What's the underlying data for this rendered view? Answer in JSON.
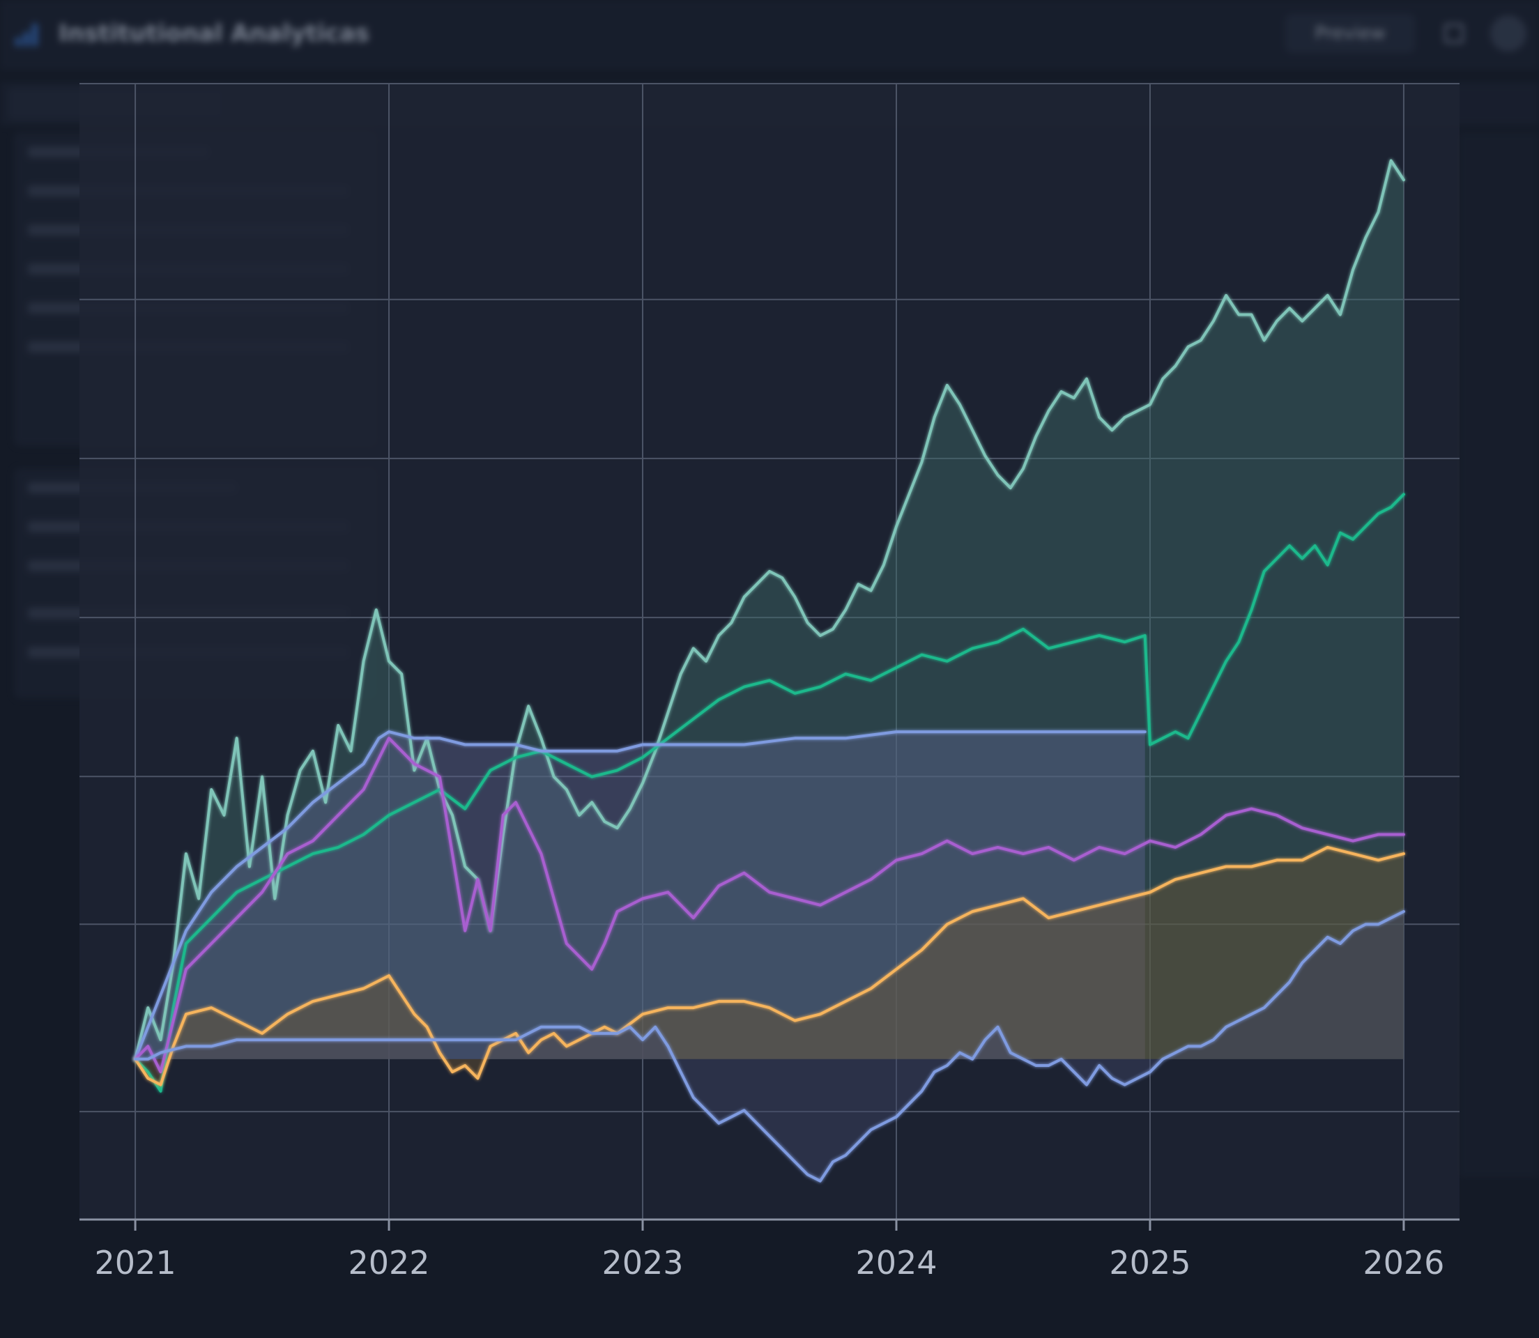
{
  "app": {
    "title": "Institutional Analyticas",
    "preview_label": "Preview"
  },
  "colors": {
    "background": "#1e2433",
    "grid": "#4c5466",
    "axis": "#8a92a3",
    "tick_text": "#b6bdca"
  },
  "chart_data": {
    "type": "line",
    "title": "",
    "xlabel": "",
    "ylabel": "",
    "xlim": [
      2020.78,
      2026.22
    ],
    "ylim": [
      0.05,
      1.82
    ],
    "x_ticks": [
      "2021",
      "2022",
      "2023",
      "2024",
      "2025",
      "2026"
    ],
    "grid": true,
    "legend": "none",
    "series": [
      {
        "color": "#7fc4b8",
        "fill": "#3d6b68",
        "x": [
          2021.0,
          2021.05,
          2021.1,
          2021.15,
          2021.2,
          2021.25,
          2021.3,
          2021.35,
          2021.4,
          2021.45,
          2021.5,
          2021.55,
          2021.6,
          2021.65,
          2021.7,
          2021.75,
          2021.8,
          2021.85,
          2021.9,
          2021.95,
          2022.0,
          2022.05,
          2022.1,
          2022.15,
          2022.2,
          2022.25,
          2022.3,
          2022.35,
          2022.4,
          2022.45,
          2022.5,
          2022.55,
          2022.6,
          2022.65,
          2022.7,
          2022.75,
          2022.8,
          2022.85,
          2022.9,
          2022.95,
          2023.0,
          2023.05,
          2023.1,
          2023.15,
          2023.2,
          2023.25,
          2023.3,
          2023.35,
          2023.4,
          2023.45,
          2023.5,
          2023.55,
          2023.6,
          2023.65,
          2023.7,
          2023.75,
          2023.8,
          2023.85,
          2023.9,
          2023.95,
          2024.0,
          2024.05,
          2024.1,
          2024.15,
          2024.2,
          2024.25,
          2024.3,
          2024.35,
          2024.4,
          2024.45,
          2024.5,
          2024.55,
          2024.6,
          2024.65,
          2024.7,
          2024.75,
          2024.8,
          2024.85,
          2024.9,
          2024.95,
          2025.0,
          2025.05,
          2025.1,
          2025.15,
          2025.2,
          2025.25,
          2025.3,
          2025.35,
          2025.4,
          2025.45,
          2025.5,
          2025.55,
          2025.6,
          2025.65,
          2025.7,
          2025.75,
          2025.8,
          2025.85,
          2025.9,
          2025.95,
          2026.0
        ],
        "values": [
          0.3,
          0.38,
          0.33,
          0.45,
          0.62,
          0.55,
          0.72,
          0.68,
          0.8,
          0.6,
          0.74,
          0.55,
          0.68,
          0.75,
          0.78,
          0.7,
          0.82,
          0.78,
          0.92,
          1.0,
          0.92,
          0.9,
          0.75,
          0.8,
          0.72,
          0.68,
          0.6,
          0.58,
          0.5,
          0.65,
          0.78,
          0.85,
          0.8,
          0.74,
          0.72,
          0.68,
          0.7,
          0.67,
          0.66,
          0.69,
          0.73,
          0.78,
          0.84,
          0.9,
          0.94,
          0.92,
          0.96,
          0.98,
          1.02,
          1.04,
          1.06,
          1.05,
          1.02,
          0.98,
          0.96,
          0.97,
          1.0,
          1.04,
          1.03,
          1.07,
          1.13,
          1.18,
          1.23,
          1.3,
          1.35,
          1.32,
          1.28,
          1.24,
          1.21,
          1.19,
          1.22,
          1.27,
          1.31,
          1.34,
          1.33,
          1.36,
          1.3,
          1.28,
          1.3,
          1.31,
          1.32,
          1.36,
          1.38,
          1.41,
          1.42,
          1.45,
          1.49,
          1.46,
          1.46,
          1.42,
          1.45,
          1.47,
          1.45,
          1.47,
          1.49,
          1.46,
          1.53,
          1.58,
          1.62,
          1.7,
          1.67
        ]
      },
      {
        "color": "#1fb98c",
        "fill": "none",
        "x": [
          2021.0,
          2021.05,
          2021.1,
          2021.15,
          2021.2,
          2021.3,
          2021.4,
          2021.5,
          2021.6,
          2021.7,
          2021.8,
          2021.9,
          2022.0,
          2022.1,
          2022.2,
          2022.3,
          2022.4,
          2022.5,
          2022.6,
          2022.7,
          2022.8,
          2022.9,
          2023.0,
          2023.1,
          2023.2,
          2023.3,
          2023.4,
          2023.5,
          2023.6,
          2023.7,
          2023.8,
          2023.9,
          2024.0,
          2024.1,
          2024.2,
          2024.3,
          2024.4,
          2024.5,
          2024.6,
          2024.7,
          2024.8,
          2024.9,
          2024.98,
          2025.0,
          2025.05,
          2025.1,
          2025.15,
          2025.2,
          2025.25,
          2025.3,
          2025.35,
          2025.4,
          2025.45,
          2025.5,
          2025.55,
          2025.6,
          2025.65,
          2025.7,
          2025.75,
          2025.8,
          2025.85,
          2025.9,
          2025.95,
          2026.0
        ],
        "values": [
          0.3,
          0.28,
          0.25,
          0.38,
          0.48,
          0.52,
          0.56,
          0.58,
          0.6,
          0.62,
          0.63,
          0.65,
          0.68,
          0.7,
          0.72,
          0.69,
          0.75,
          0.77,
          0.78,
          0.76,
          0.74,
          0.75,
          0.77,
          0.8,
          0.83,
          0.86,
          0.88,
          0.89,
          0.87,
          0.88,
          0.9,
          0.89,
          0.91,
          0.93,
          0.92,
          0.94,
          0.95,
          0.97,
          0.94,
          0.95,
          0.96,
          0.95,
          0.96,
          0.79,
          0.8,
          0.81,
          0.8,
          0.84,
          0.88,
          0.92,
          0.95,
          1.0,
          1.06,
          1.08,
          1.1,
          1.08,
          1.1,
          1.07,
          1.12,
          1.11,
          1.13,
          1.15,
          1.16,
          1.18
        ]
      },
      {
        "color": "#7f9be0",
        "fill": "#5a628c",
        "x": [
          2021.0,
          2021.1,
          2021.2,
          2021.3,
          2021.4,
          2021.5,
          2021.6,
          2021.7,
          2021.8,
          2021.9,
          2021.96,
          2022.0,
          2022.1,
          2022.2,
          2022.3,
          2022.4,
          2022.5,
          2022.6,
          2022.7,
          2022.8,
          2022.9,
          2023.0,
          2023.2,
          2023.4,
          2023.6,
          2023.8,
          2024.0,
          2024.2,
          2024.4,
          2024.6,
          2024.8,
          2024.98
        ],
        "values": [
          0.3,
          0.4,
          0.5,
          0.56,
          0.6,
          0.63,
          0.66,
          0.7,
          0.73,
          0.76,
          0.8,
          0.81,
          0.8,
          0.8,
          0.79,
          0.79,
          0.79,
          0.78,
          0.78,
          0.78,
          0.78,
          0.79,
          0.79,
          0.79,
          0.8,
          0.8,
          0.81,
          0.81,
          0.81,
          0.81,
          0.81,
          0.81
        ]
      },
      {
        "color": "#a85fd0",
        "fill": "none",
        "x": [
          2021.0,
          2021.05,
          2021.1,
          2021.15,
          2021.2,
          2021.3,
          2021.4,
          2021.5,
          2021.6,
          2021.7,
          2021.8,
          2021.9,
          2022.0,
          2022.05,
          2022.1,
          2022.15,
          2022.2,
          2022.25,
          2022.3,
          2022.35,
          2022.4,
          2022.45,
          2022.5,
          2022.55,
          2022.6,
          2022.65,
          2022.7,
          2022.75,
          2022.8,
          2022.85,
          2022.9,
          2023.0,
          2023.1,
          2023.2,
          2023.3,
          2023.4,
          2023.5,
          2023.6,
          2023.7,
          2023.8,
          2023.9,
          2024.0,
          2024.1,
          2024.2,
          2024.3,
          2024.4,
          2024.5,
          2024.6,
          2024.7,
          2024.8,
          2024.9,
          2025.0,
          2025.1,
          2025.2,
          2025.3,
          2025.4,
          2025.5,
          2025.6,
          2025.7,
          2025.8,
          2025.9,
          2026.0
        ],
        "values": [
          0.3,
          0.32,
          0.28,
          0.36,
          0.44,
          0.48,
          0.52,
          0.56,
          0.62,
          0.64,
          0.68,
          0.72,
          0.8,
          0.78,
          0.76,
          0.75,
          0.74,
          0.62,
          0.5,
          0.58,
          0.5,
          0.68,
          0.7,
          0.66,
          0.62,
          0.55,
          0.48,
          0.46,
          0.44,
          0.48,
          0.53,
          0.55,
          0.56,
          0.52,
          0.57,
          0.59,
          0.56,
          0.55,
          0.54,
          0.56,
          0.58,
          0.61,
          0.62,
          0.64,
          0.62,
          0.63,
          0.62,
          0.63,
          0.61,
          0.63,
          0.62,
          0.64,
          0.63,
          0.65,
          0.68,
          0.69,
          0.68,
          0.66,
          0.65,
          0.64,
          0.65,
          0.65
        ]
      },
      {
        "color": "#f6b45d",
        "fill": "#6b5533",
        "x": [
          2021.0,
          2021.05,
          2021.1,
          2021.15,
          2021.2,
          2021.3,
          2021.4,
          2021.5,
          2021.6,
          2021.7,
          2021.8,
          2021.9,
          2022.0,
          2022.05,
          2022.1,
          2022.15,
          2022.2,
          2022.25,
          2022.3,
          2022.35,
          2022.4,
          2022.45,
          2022.5,
          2022.55,
          2022.6,
          2022.65,
          2022.7,
          2022.75,
          2022.8,
          2022.85,
          2022.9,
          2023.0,
          2023.1,
          2023.2,
          2023.3,
          2023.4,
          2023.5,
          2023.6,
          2023.7,
          2023.8,
          2023.9,
          2024.0,
          2024.1,
          2024.2,
          2024.3,
          2024.4,
          2024.5,
          2024.6,
          2024.7,
          2024.8,
          2024.9,
          2025.0,
          2025.1,
          2025.2,
          2025.3,
          2025.4,
          2025.5,
          2025.6,
          2025.7,
          2025.8,
          2025.9,
          2026.0
        ],
        "values": [
          0.3,
          0.27,
          0.26,
          0.32,
          0.37,
          0.38,
          0.36,
          0.34,
          0.37,
          0.39,
          0.4,
          0.41,
          0.43,
          0.4,
          0.37,
          0.35,
          0.31,
          0.28,
          0.29,
          0.27,
          0.32,
          0.33,
          0.34,
          0.31,
          0.33,
          0.34,
          0.32,
          0.33,
          0.34,
          0.35,
          0.34,
          0.37,
          0.38,
          0.38,
          0.39,
          0.39,
          0.38,
          0.36,
          0.37,
          0.39,
          0.41,
          0.44,
          0.47,
          0.51,
          0.53,
          0.54,
          0.55,
          0.52,
          0.53,
          0.54,
          0.55,
          0.56,
          0.58,
          0.59,
          0.6,
          0.6,
          0.61,
          0.61,
          0.63,
          0.62,
          0.61,
          0.62
        ]
      },
      {
        "color": "#7f9be0",
        "fill": "#3d4566",
        "x": [
          2021.0,
          2021.05,
          2021.1,
          2021.2,
          2021.3,
          2021.4,
          2021.5,
          2021.6,
          2021.7,
          2021.8,
          2021.9,
          2022.0,
          2022.1,
          2022.2,
          2022.3,
          2022.4,
          2022.5,
          2022.55,
          2022.6,
          2022.65,
          2022.7,
          2022.75,
          2022.8,
          2022.85,
          2022.9,
          2022.95,
          2023.0,
          2023.05,
          2023.1,
          2023.15,
          2023.2,
          2023.25,
          2023.3,
          2023.35,
          2023.4,
          2023.45,
          2023.5,
          2023.55,
          2023.6,
          2023.65,
          2023.7,
          2023.75,
          2023.8,
          2023.85,
          2023.9,
          2023.95,
          2024.0,
          2024.05,
          2024.1,
          2024.15,
          2024.2,
          2024.25,
          2024.3,
          2024.35,
          2024.4,
          2024.45,
          2024.5,
          2024.55,
          2024.6,
          2024.65,
          2024.7,
          2024.75,
          2024.8,
          2024.85,
          2024.9,
          2024.95,
          2025.0,
          2025.05,
          2025.1,
          2025.15,
          2025.2,
          2025.25,
          2025.3,
          2025.35,
          2025.4,
          2025.45,
          2025.5,
          2025.55,
          2025.6,
          2025.65,
          2025.7,
          2025.75,
          2025.8,
          2025.85,
          2025.9,
          2025.95,
          2026.0
        ],
        "values": [
          0.3,
          0.3,
          0.31,
          0.32,
          0.32,
          0.33,
          0.33,
          0.33,
          0.33,
          0.33,
          0.33,
          0.33,
          0.33,
          0.33,
          0.33,
          0.33,
          0.33,
          0.34,
          0.35,
          0.35,
          0.35,
          0.35,
          0.34,
          0.34,
          0.34,
          0.35,
          0.33,
          0.35,
          0.32,
          0.28,
          0.24,
          0.22,
          0.2,
          0.21,
          0.22,
          0.2,
          0.18,
          0.16,
          0.14,
          0.12,
          0.11,
          0.14,
          0.15,
          0.17,
          0.19,
          0.2,
          0.21,
          0.23,
          0.25,
          0.28,
          0.29,
          0.31,
          0.3,
          0.33,
          0.35,
          0.31,
          0.3,
          0.29,
          0.29,
          0.3,
          0.28,
          0.26,
          0.29,
          0.27,
          0.26,
          0.27,
          0.28,
          0.3,
          0.31,
          0.32,
          0.32,
          0.33,
          0.35,
          0.36,
          0.37,
          0.38,
          0.4,
          0.42,
          0.45,
          0.47,
          0.49,
          0.48,
          0.5,
          0.51,
          0.51,
          0.52,
          0.53
        ]
      }
    ]
  }
}
